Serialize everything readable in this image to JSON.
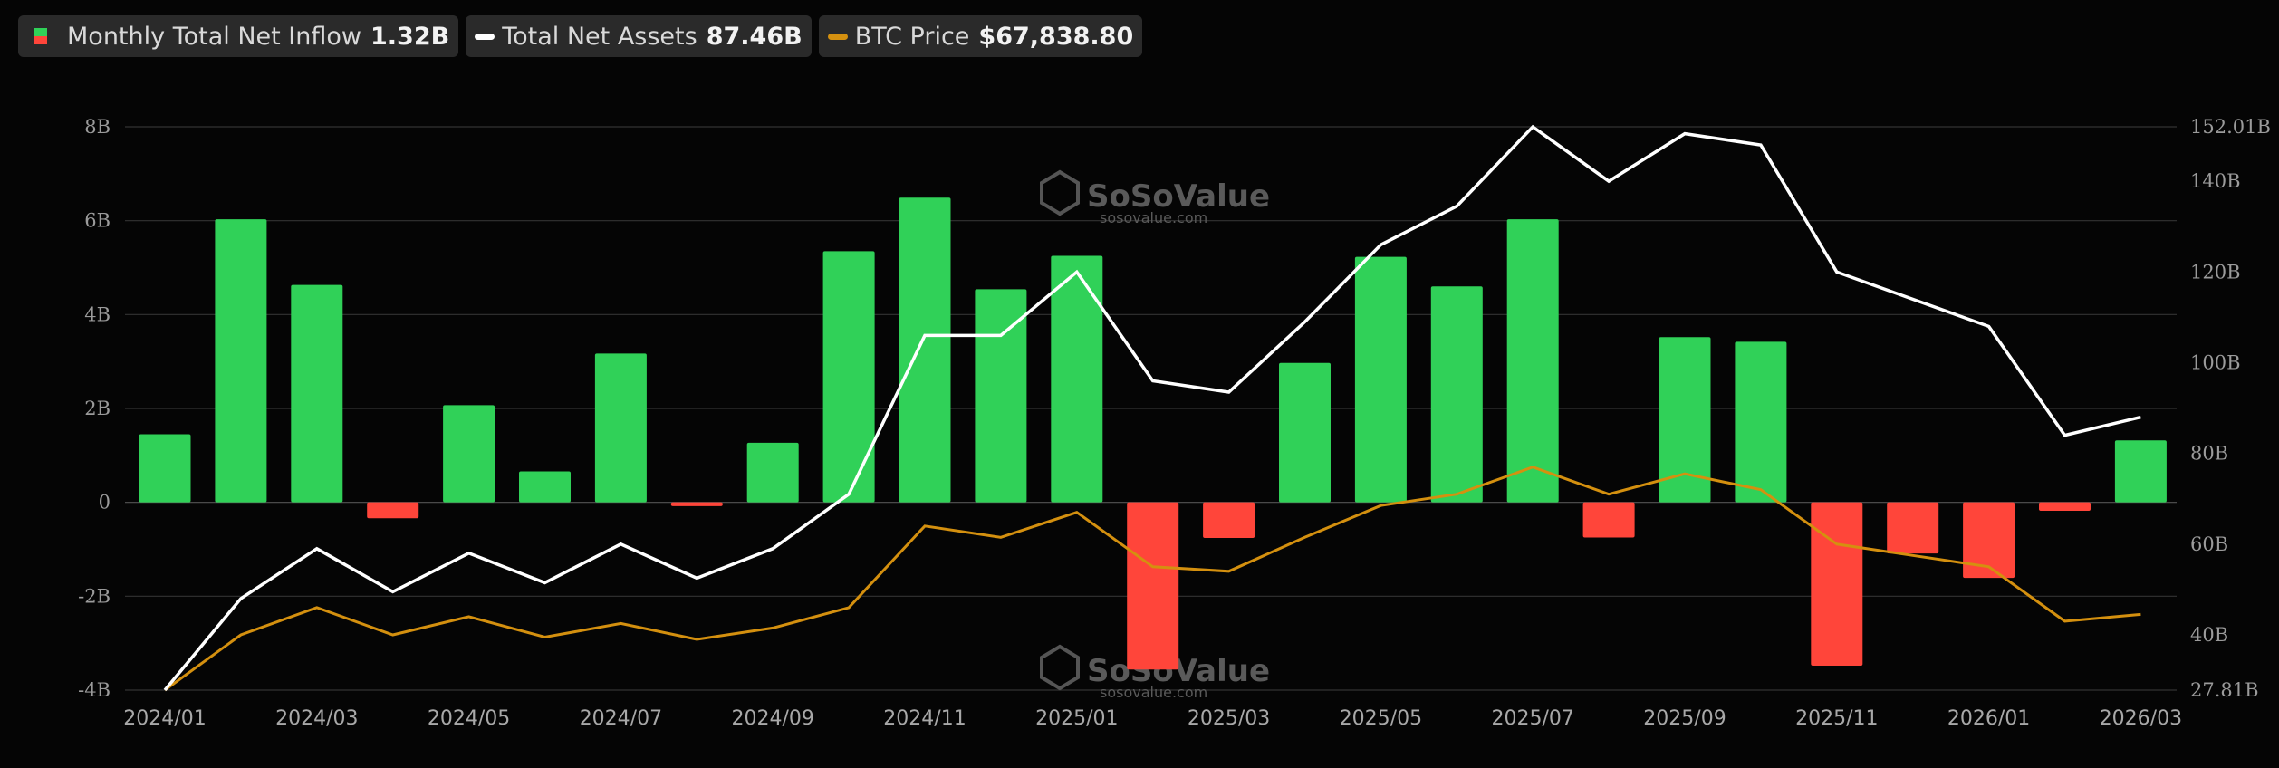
{
  "legend": [
    {
      "label": "Monthly Total Net Inflow",
      "value": "1.32B"
    },
    {
      "label": "Total Net Assets",
      "value": "87.46B"
    },
    {
      "label": "BTC Price",
      "value": "$67,838.80"
    }
  ],
  "watermark": {
    "brand": "SoSoValue",
    "url": "sosovalue.com"
  },
  "colors": {
    "positive": "#30d158",
    "negative": "#ff453a",
    "assets": "#ffffff",
    "price": "#d4900f",
    "grid": "#333333"
  },
  "chart_data": {
    "type": "bar",
    "months": [
      "2024/01",
      "2024/02",
      "2024/03",
      "2024/04",
      "2024/05",
      "2024/06",
      "2024/07",
      "2024/08",
      "2024/09",
      "2024/10",
      "2024/11",
      "2024/12",
      "2025/01",
      "2025/02",
      "2025/03",
      "2025/04",
      "2025/05",
      "2025/06",
      "2025/07",
      "2025/08",
      "2025/09",
      "2025/10",
      "2025/11",
      "2025/12",
      "2026/01",
      "2026/02",
      "2026/03"
    ],
    "x_tick_labels": [
      "2024/01",
      "2024/03",
      "2024/05",
      "2024/07",
      "2024/09",
      "2024/11",
      "2025/01",
      "2025/03",
      "2025/05",
      "2025/07",
      "2025/09",
      "2025/11",
      "2026/01",
      "2026/03"
    ],
    "left_axis": {
      "ticks": [
        "8B",
        "6B",
        "4B",
        "2B",
        "0",
        "-2B",
        "-4B"
      ],
      "values": [
        8,
        6,
        4,
        2,
        0,
        -2,
        -4
      ],
      "range": [
        -4,
        8
      ]
    },
    "right_axis": {
      "ticks": [
        "152.01B",
        "140B",
        "120B",
        "100B",
        "80B",
        "60B",
        "40B",
        "27.81B"
      ],
      "values": [
        152.01,
        140,
        120,
        100,
        80,
        60,
        40,
        27.81
      ],
      "range": [
        27.81,
        152.01
      ]
    },
    "series": [
      {
        "name": "Monthly Total Net Inflow",
        "axis": "left",
        "unit": "B USD",
        "values": [
          1.45,
          6.03,
          4.63,
          -0.34,
          2.07,
          0.66,
          3.17,
          -0.08,
          1.27,
          5.35,
          6.49,
          4.54,
          5.25,
          -3.56,
          -0.76,
          2.97,
          5.23,
          4.6,
          6.03,
          -0.75,
          3.52,
          3.42,
          -3.48,
          -1.09,
          -1.61,
          -0.18,
          1.32
        ]
      },
      {
        "name": "Total Net Assets",
        "axis": "right",
        "unit": "B USD",
        "values": [
          27.81,
          48,
          59,
          49.5,
          58,
          51.5,
          60,
          52.5,
          59,
          71,
          106,
          106,
          120,
          96,
          93.5,
          109,
          126,
          134.5,
          152,
          140,
          150.5,
          148,
          120,
          114,
          108,
          84,
          88
        ]
      },
      {
        "name": "BTC Price",
        "axis": "right",
        "unit": "B (right axis)",
        "values": [
          27.81,
          40,
          46,
          40,
          44,
          39.5,
          42.5,
          39,
          41.5,
          46,
          64,
          61.5,
          67,
          55,
          54,
          61.5,
          68.5,
          71,
          77,
          71,
          75.5,
          72,
          60,
          57.5,
          55,
          43,
          44.5
        ]
      }
    ]
  }
}
